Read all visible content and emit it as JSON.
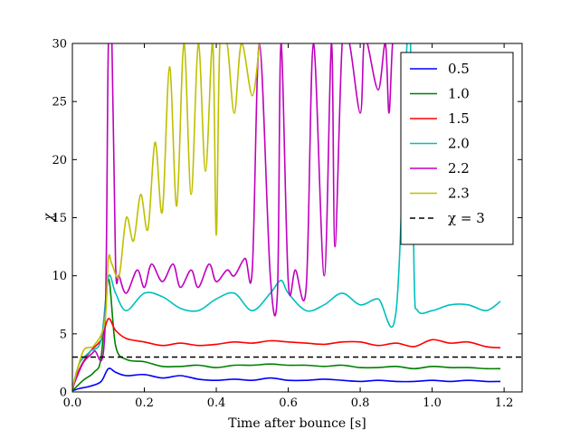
{
  "chart_data": {
    "type": "line",
    "xlabel": "Time after bounce [s]",
    "ylabel": "χ",
    "xlim": [
      0.0,
      1.25
    ],
    "ylim": [
      0,
      30
    ],
    "xticks": [
      "0.0",
      "0.2",
      "0.4",
      "0.6",
      "0.8",
      "1.0",
      "1.2"
    ],
    "yticks": [
      "0",
      "5",
      "10",
      "15",
      "20",
      "25",
      "30"
    ],
    "legend_position": "top-right",
    "threshold": {
      "name": "χ = 3",
      "value": 3,
      "color": "#000000",
      "style": "dashed"
    },
    "series": [
      {
        "name": "0.5",
        "color": "#0000ff",
        "x": [
          0.0,
          0.02,
          0.05,
          0.08,
          0.1,
          0.12,
          0.15,
          0.2,
          0.25,
          0.3,
          0.35,
          0.4,
          0.45,
          0.5,
          0.55,
          0.6,
          0.65,
          0.7,
          0.75,
          0.8,
          0.85,
          0.9,
          0.95,
          1.0,
          1.05,
          1.1,
          1.15,
          1.19
        ],
        "y": [
          0.1,
          0.3,
          0.5,
          0.9,
          2.0,
          1.7,
          1.4,
          1.5,
          1.2,
          1.4,
          1.1,
          1.0,
          1.1,
          1.0,
          1.2,
          1.0,
          1.0,
          1.1,
          1.0,
          0.9,
          1.0,
          0.9,
          0.9,
          1.0,
          0.9,
          1.0,
          0.9,
          0.9
        ]
      },
      {
        "name": "1.0",
        "color": "#008000",
        "x": [
          0.0,
          0.03,
          0.06,
          0.08,
          0.1,
          0.12,
          0.15,
          0.2,
          0.25,
          0.3,
          0.35,
          0.4,
          0.45,
          0.5,
          0.55,
          0.6,
          0.65,
          0.7,
          0.75,
          0.8,
          0.85,
          0.9,
          0.95,
          1.0,
          1.05,
          1.1,
          1.15,
          1.19
        ],
        "y": [
          0.1,
          1.0,
          1.7,
          3.0,
          9.7,
          4.0,
          2.8,
          2.6,
          2.2,
          2.2,
          2.3,
          2.1,
          2.3,
          2.3,
          2.4,
          2.3,
          2.3,
          2.2,
          2.3,
          2.1,
          2.1,
          2.2,
          2.0,
          2.2,
          2.1,
          2.1,
          2.0,
          2.0
        ]
      },
      {
        "name": "1.5",
        "color": "#ff0000",
        "x": [
          0.0,
          0.02,
          0.05,
          0.08,
          0.1,
          0.12,
          0.15,
          0.2,
          0.25,
          0.3,
          0.35,
          0.4,
          0.45,
          0.5,
          0.55,
          0.6,
          0.65,
          0.7,
          0.75,
          0.8,
          0.85,
          0.9,
          0.95,
          1.0,
          1.05,
          1.1,
          1.15,
          1.19
        ],
        "y": [
          0.2,
          2.0,
          3.5,
          4.5,
          6.3,
          5.3,
          4.6,
          4.3,
          4.0,
          4.2,
          4.0,
          4.1,
          4.3,
          4.2,
          4.4,
          4.3,
          4.2,
          4.1,
          4.3,
          4.3,
          4.0,
          4.2,
          3.9,
          4.5,
          4.2,
          4.3,
          3.9,
          3.8
        ]
      },
      {
        "name": "2.0",
        "color": "#00bfbf",
        "x": [
          0.0,
          0.02,
          0.05,
          0.08,
          0.1,
          0.12,
          0.15,
          0.2,
          0.25,
          0.3,
          0.35,
          0.4,
          0.45,
          0.5,
          0.55,
          0.58,
          0.6,
          0.65,
          0.7,
          0.75,
          0.8,
          0.85,
          0.9,
          0.93,
          0.94,
          0.95,
          0.96,
          1.0,
          1.05,
          1.1,
          1.15,
          1.19
        ],
        "y": [
          0.3,
          2.5,
          3.5,
          4.5,
          9.9,
          8.5,
          7.0,
          8.5,
          8.2,
          7.2,
          7.0,
          8.0,
          8.5,
          7.0,
          8.5,
          9.6,
          8.5,
          7.0,
          7.5,
          8.5,
          7.5,
          8.0,
          7.0,
          30.0,
          30.0,
          10.0,
          7.0,
          7.0,
          7.5,
          7.5,
          7.0,
          7.8
        ]
      },
      {
        "name": "2.2",
        "color": "#bf00bf",
        "x": [
          0.0,
          0.03,
          0.06,
          0.09,
          0.1,
          0.11,
          0.12,
          0.13,
          0.15,
          0.18,
          0.2,
          0.22,
          0.25,
          0.28,
          0.3,
          0.33,
          0.35,
          0.38,
          0.4,
          0.43,
          0.45,
          0.48,
          0.5,
          0.52,
          0.55,
          0.57,
          0.58,
          0.6,
          0.62,
          0.65,
          0.67,
          0.7,
          0.72,
          0.73,
          0.75,
          0.77,
          0.8,
          0.81,
          0.82,
          0.85,
          0.87,
          0.88,
          0.89,
          0.9
        ],
        "y": [
          0.3,
          2.5,
          3.5,
          5.0,
          30.0,
          30.0,
          11.0,
          10.0,
          8.5,
          10.5,
          9.0,
          11.0,
          9.5,
          11.0,
          9.0,
          10.5,
          9.0,
          11.0,
          9.5,
          10.5,
          10.0,
          11.5,
          10.5,
          30.0,
          10.0,
          8.5,
          30.0,
          9.5,
          10.5,
          9.0,
          30.0,
          10.0,
          30.0,
          12.5,
          30.0,
          30.0,
          24.0,
          30.0,
          30.0,
          26.0,
          30.0,
          24.0,
          30.0,
          30.0
        ]
      },
      {
        "name": "2.3",
        "color": "#bfbf00",
        "x": [
          0.0,
          0.03,
          0.06,
          0.09,
          0.1,
          0.11,
          0.13,
          0.15,
          0.17,
          0.19,
          0.21,
          0.23,
          0.25,
          0.27,
          0.29,
          0.31,
          0.33,
          0.35,
          0.37,
          0.39,
          0.4,
          0.41,
          0.43,
          0.45,
          0.47,
          0.5,
          0.52
        ],
        "y": [
          0.3,
          3.5,
          4.0,
          6.0,
          11.5,
          11.0,
          10.0,
          15.0,
          13.0,
          17.0,
          14.0,
          21.5,
          15.5,
          28.0,
          16.0,
          30.0,
          17.0,
          30.0,
          19.0,
          30.0,
          13.5,
          30.0,
          30.0,
          24.0,
          30.0,
          25.5,
          30.0
        ]
      }
    ]
  }
}
